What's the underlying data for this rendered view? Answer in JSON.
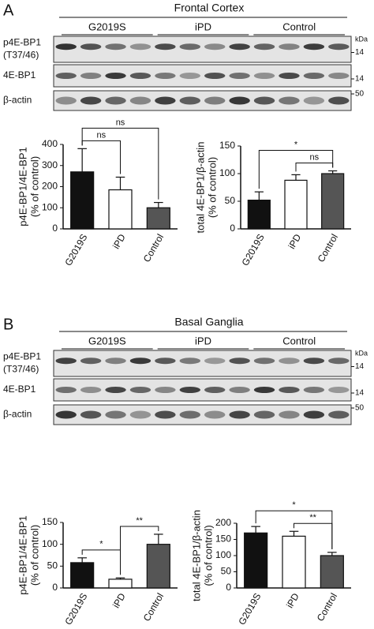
{
  "panels": [
    {
      "label": "A",
      "title": "Frontal Cortex",
      "groups": [
        "G2019S",
        "iPD",
        "Control"
      ],
      "unit": "kDa",
      "blots": [
        {
          "label": [
            "p4E-BP1",
            "(T37/46)"
          ],
          "marker": 14
        },
        {
          "label": [
            "4E-BP1"
          ],
          "marker": 14
        },
        {
          "label": [
            "β-actin"
          ],
          "marker": 50
        }
      ]
    },
    {
      "label": "B",
      "title": "Basal Ganglia",
      "groups": [
        "G2019S",
        "iPD",
        "Control"
      ],
      "unit": "kDa",
      "blots": [
        {
          "label": [
            "p4E-BP1",
            "(T37/46)"
          ],
          "marker": 14
        },
        {
          "label": [
            "4E-BP1"
          ],
          "marker": 14
        },
        {
          "label": [
            "β-actin"
          ],
          "marker": 50
        }
      ]
    }
  ],
  "chart_data": [
    {
      "type": "bar",
      "ylabel": [
        "p4E-BP1/4E-BP1",
        "(% of control)"
      ],
      "categories": [
        "G2019S",
        "iPD",
        "Control"
      ],
      "values": [
        270,
        185,
        100
      ],
      "errors": [
        110,
        60,
        25
      ],
      "colors": [
        "#111111",
        "#ffffff",
        "#555555"
      ],
      "ylim": [
        0,
        400
      ],
      "yticks": [
        0,
        100,
        200,
        300,
        400
      ],
      "annotations": [
        {
          "between": [
            "G2019S",
            "iPD"
          ],
          "label": "ns"
        },
        {
          "between": [
            "G2019S",
            "Control"
          ],
          "label": "ns"
        }
      ]
    },
    {
      "type": "bar",
      "ylabel": [
        "total 4E-BP1/β-actin",
        "(% of control)"
      ],
      "categories": [
        "G2019S",
        "iPD",
        "Control"
      ],
      "values": [
        52,
        88,
        100
      ],
      "errors": [
        15,
        10,
        5
      ],
      "colors": [
        "#111111",
        "#ffffff",
        "#555555"
      ],
      "ylim": [
        0,
        150
      ],
      "yticks": [
        0,
        50,
        100,
        150
      ],
      "annotations": [
        {
          "between": [
            "iPD",
            "Control"
          ],
          "label": "ns"
        },
        {
          "between": [
            "G2019S",
            "Control"
          ],
          "label": "*"
        }
      ]
    },
    {
      "type": "bar",
      "ylabel": [
        "p4E-BP1/4E-BP1",
        "(% of control)"
      ],
      "categories": [
        "G2019S",
        "iPD",
        "Control"
      ],
      "values": [
        58,
        20,
        100
      ],
      "errors": [
        11,
        3,
        23
      ],
      "colors": [
        "#111111",
        "#ffffff",
        "#555555"
      ],
      "ylim": [
        0,
        150
      ],
      "yticks": [
        0,
        50,
        100,
        150
      ],
      "annotations": [
        {
          "between": [
            "G2019S",
            "iPD"
          ],
          "label": "*"
        },
        {
          "between": [
            "iPD",
            "Control"
          ],
          "label": "**"
        }
      ]
    },
    {
      "type": "bar",
      "ylabel": [
        "total 4E-BP1/β-actin",
        "(% of control)"
      ],
      "categories": [
        "G2019S",
        "iPD",
        "Control"
      ],
      "values": [
        170,
        160,
        100
      ],
      "errors": [
        20,
        15,
        10
      ],
      "colors": [
        "#111111",
        "#ffffff",
        "#555555"
      ],
      "ylim": [
        0,
        200
      ],
      "yticks": [
        0,
        50,
        100,
        150,
        200
      ],
      "annotations": [
        {
          "between": [
            "iPD",
            "Control"
          ],
          "label": "**"
        },
        {
          "between": [
            "G2019S",
            "Control"
          ],
          "label": "*"
        }
      ]
    }
  ]
}
